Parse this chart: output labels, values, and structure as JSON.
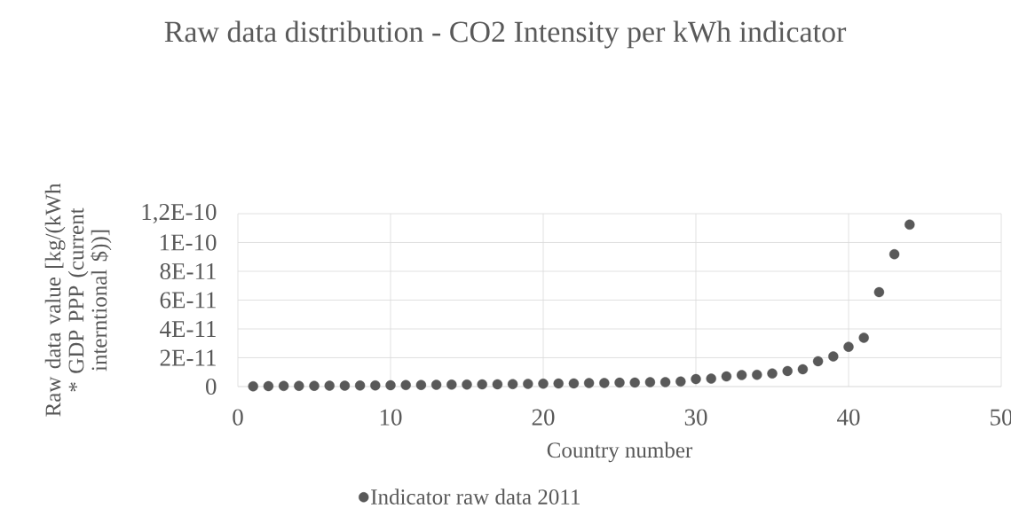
{
  "chart_data": {
    "type": "scatter",
    "title": "Raw data distribution - CO2 Intensity per kWh indicator",
    "xlabel": "Country number",
    "ylabel": "Raw data value [kg/(kWh * GDP PPP (current interntional $))]",
    "series": [
      {
        "name": "Indicator raw data 2011",
        "color": "#595959",
        "x": [
          1,
          2,
          3,
          4,
          5,
          6,
          7,
          8,
          9,
          10,
          11,
          12,
          13,
          14,
          15,
          16,
          17,
          18,
          19,
          20,
          21,
          22,
          23,
          24,
          25,
          26,
          27,
          28,
          29,
          30,
          31,
          32,
          33,
          34,
          35,
          36,
          37,
          38,
          39,
          40,
          41,
          42,
          43,
          44
        ],
        "values": [
          2e-13,
          3e-13,
          4e-13,
          5e-13,
          5e-13,
          6e-13,
          6e-13,
          7e-13,
          8e-13,
          9e-13,
          1e-12,
          1.1e-12,
          1.2e-12,
          1.3e-12,
          1.4e-12,
          1.5e-12,
          1.6e-12,
          1.7e-12,
          1.9e-12,
          2e-12,
          2.1e-12,
          2.2e-12,
          2.4e-12,
          2.5e-12,
          2.7e-12,
          2.8e-12,
          3e-12,
          3.1e-12,
          3.5e-12,
          5.2e-12,
          5.5e-12,
          7e-12,
          8e-12,
          8.2e-12,
          9.1e-12,
          1.08e-11,
          1.2e-11,
          1.76e-11,
          2.09e-11,
          2.76e-11,
          3.39e-11,
          6.55e-11,
          9.19e-11,
          1.124e-10
        ]
      }
    ],
    "xlim": [
      0,
      50
    ],
    "xticks": [
      0,
      10,
      20,
      30,
      40,
      50
    ],
    "ylim": [
      0,
      1.2e-10
    ],
    "yticks": [
      0,
      {
        "value": 2e-11,
        "label": "2E-11"
      },
      {
        "value": 4e-11,
        "label": "4E-11"
      },
      {
        "value": 6e-11,
        "label": "6E-11"
      },
      {
        "value": 8e-11,
        "label": "8E-11"
      },
      {
        "value": 1e-10,
        "label": "1E-10"
      },
      {
        "value": 1.2e-10,
        "label": "1,2E-10"
      }
    ],
    "grid": true,
    "legend": "bottom",
    "marker": "circle"
  }
}
